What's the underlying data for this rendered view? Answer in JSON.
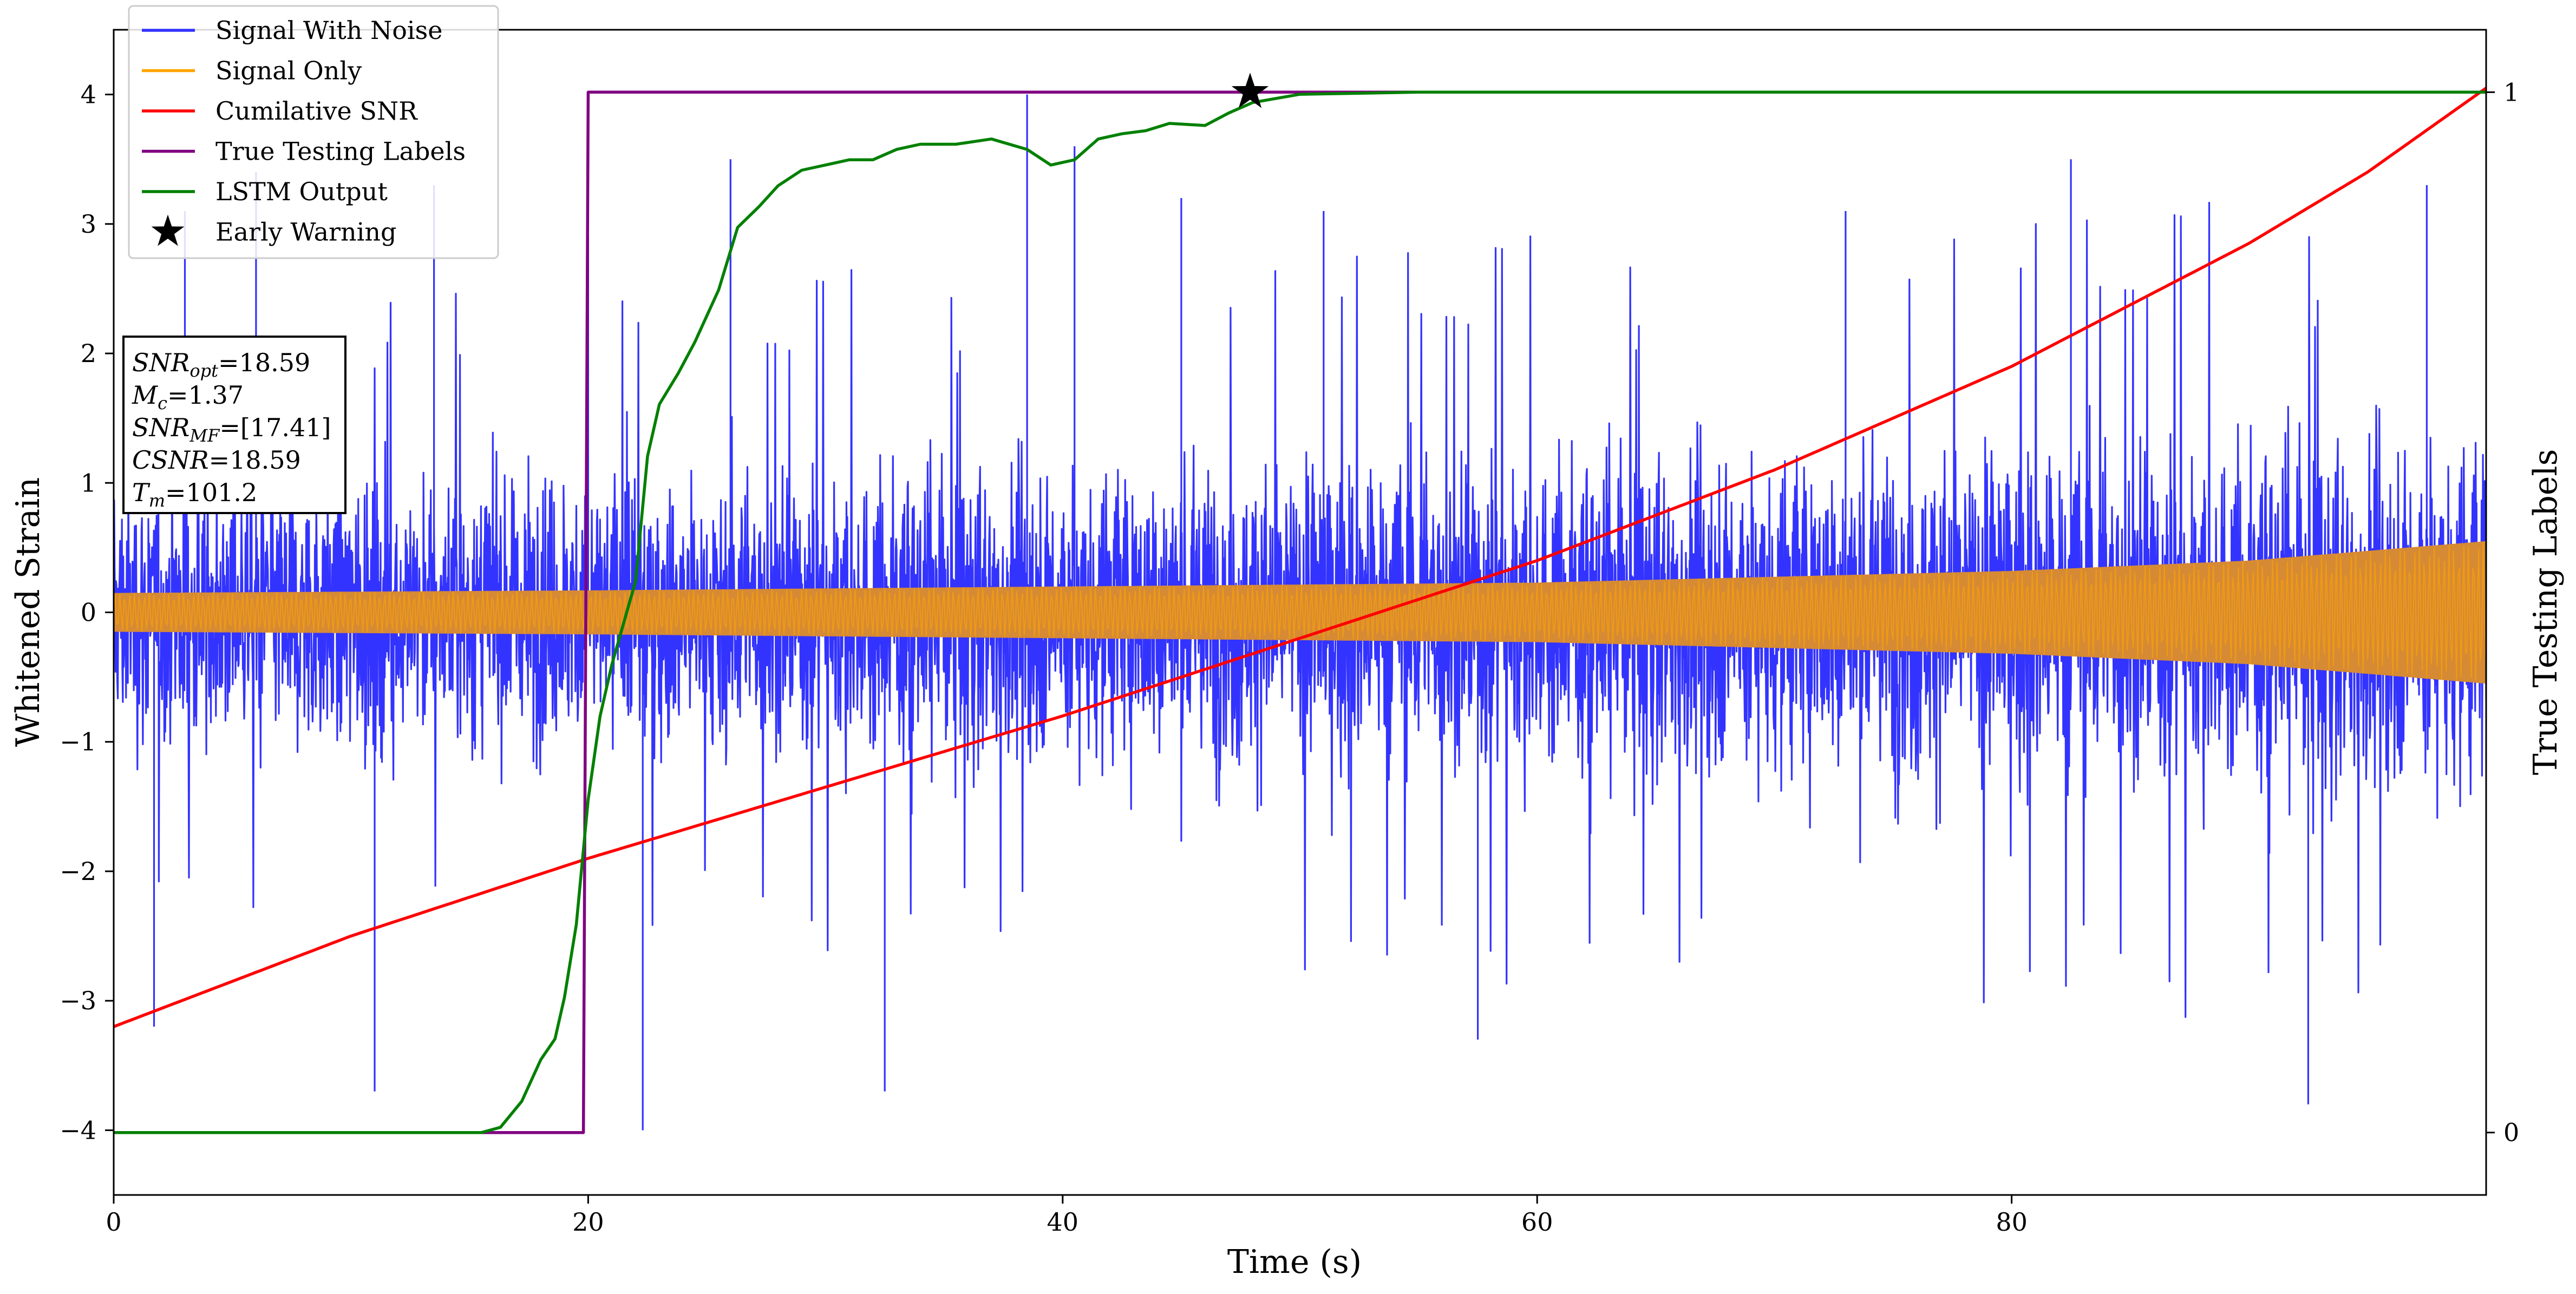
{
  "chart_data": {
    "type": "line",
    "xlabel": "Time (s)",
    "ylabel": "Whitened Strain",
    "y2label": "True Testing Labels",
    "xlim": [
      0,
      100
    ],
    "ylim": [
      -4.5,
      4.5
    ],
    "y2lim": [
      -0.06,
      1.06
    ],
    "x_ticks": [
      0,
      20,
      40,
      60,
      80
    ],
    "x_tick_labels": [
      "0",
      "20",
      "40",
      "60",
      "80"
    ],
    "y_ticks": [
      -4,
      -3,
      -2,
      -1,
      0,
      1,
      2,
      3,
      4
    ],
    "y_tick_labels": [
      "−4",
      "−3",
      "−2",
      "−1",
      "0",
      "1",
      "2",
      "3",
      "4"
    ],
    "y2_ticks": [
      0,
      1
    ],
    "y2_tick_labels": [
      "0",
      "1"
    ],
    "grid": false,
    "legend_position": "top-left",
    "series": [
      {
        "name": "Signal With Noise",
        "color": "#3333ff",
        "axis": "left",
        "kind": "noise",
        "typical_amplitude": [
          [
            0,
            1.3
          ],
          [
            100,
            1.8
          ]
        ],
        "peak_excursions": [
          [
            1.7,
            -3.2
          ],
          [
            3.0,
            3.1
          ],
          [
            6.0,
            3.4
          ],
          [
            11.0,
            -3.7
          ],
          [
            13.5,
            3.3
          ],
          [
            20.0,
            2.9
          ],
          [
            22.3,
            -4.0
          ],
          [
            26.0,
            3.5
          ],
          [
            32.5,
            -3.7
          ],
          [
            38.5,
            4.0
          ],
          [
            40.5,
            3.6
          ],
          [
            45.0,
            3.2
          ],
          [
            51.0,
            3.1
          ],
          [
            57.5,
            -3.3
          ],
          [
            73.0,
            3.1
          ],
          [
            82.5,
            3.5
          ],
          [
            92.5,
            -3.8
          ],
          [
            97.5,
            3.3
          ]
        ]
      },
      {
        "name": "Signal Only",
        "color": "#ffa500",
        "axis": "left",
        "kind": "chirp",
        "envelope": [
          [
            0,
            0.15
          ],
          [
            20,
            0.17
          ],
          [
            40,
            0.2
          ],
          [
            60,
            0.23
          ],
          [
            80,
            0.32
          ],
          [
            90,
            0.4
          ],
          [
            100,
            0.55
          ]
        ]
      },
      {
        "name": "Cumilative SNR",
        "color": "#ff0000",
        "axis": "left",
        "points": [
          [
            0,
            -3.2
          ],
          [
            10,
            -2.5
          ],
          [
            20,
            -1.9
          ],
          [
            30,
            -1.35
          ],
          [
            40,
            -0.8
          ],
          [
            50,
            -0.2
          ],
          [
            60,
            0.4
          ],
          [
            70,
            1.1
          ],
          [
            80,
            1.9
          ],
          [
            90,
            2.85
          ],
          [
            95,
            3.4
          ],
          [
            100,
            4.05
          ]
        ]
      },
      {
        "name": "True Testing Labels",
        "color": "#800080",
        "axis": "right",
        "points": [
          [
            0,
            0
          ],
          [
            19.8,
            0
          ],
          [
            20.0,
            1
          ],
          [
            100,
            1
          ]
        ]
      },
      {
        "name": "LSTM Output",
        "color": "#008000",
        "axis": "right",
        "points": [
          [
            0,
            0
          ],
          [
            15.5,
            0
          ],
          [
            16.3,
            0.005
          ],
          [
            17.2,
            0.03
          ],
          [
            18.0,
            0.07
          ],
          [
            18.6,
            0.09
          ],
          [
            19.0,
            0.13
          ],
          [
            19.5,
            0.2
          ],
          [
            20.0,
            0.32
          ],
          [
            20.5,
            0.4
          ],
          [
            21.0,
            0.45
          ],
          [
            22.0,
            0.53
          ],
          [
            22.5,
            0.65
          ],
          [
            23.0,
            0.7
          ],
          [
            23.8,
            0.73
          ],
          [
            24.5,
            0.76
          ],
          [
            25.5,
            0.81
          ],
          [
            26.3,
            0.87
          ],
          [
            27.2,
            0.89
          ],
          [
            28.0,
            0.91
          ],
          [
            29.0,
            0.925
          ],
          [
            30.0,
            0.93
          ],
          [
            31.0,
            0.935
          ],
          [
            32.0,
            0.935
          ],
          [
            33.0,
            0.945
          ],
          [
            34.0,
            0.95
          ],
          [
            35.5,
            0.95
          ],
          [
            37.0,
            0.955
          ],
          [
            38.5,
            0.945
          ],
          [
            39.5,
            0.93
          ],
          [
            40.5,
            0.935
          ],
          [
            41.5,
            0.955
          ],
          [
            42.5,
            0.96
          ],
          [
            43.5,
            0.963
          ],
          [
            44.5,
            0.97
          ],
          [
            46.0,
            0.968
          ],
          [
            47.0,
            0.98
          ],
          [
            48.0,
            0.99
          ],
          [
            50.0,
            0.998
          ],
          [
            55.0,
            1.0
          ],
          [
            100,
            1.0
          ]
        ]
      },
      {
        "name": "Early Warning",
        "color": "#000000",
        "axis": "right",
        "marker": "star",
        "points": [
          [
            47.9,
            1.0
          ]
        ]
      }
    ],
    "annotation_lines": [
      {
        "var": "SNR",
        "sub": "opt",
        "value": "=18.59"
      },
      {
        "var": "M",
        "sub": "c",
        "value": "=1.37"
      },
      {
        "var": "SNR",
        "sub": "MF",
        "value": "=[17.41]"
      },
      {
        "var": "CSNR",
        "sub": "",
        "value": "=18.59"
      },
      {
        "var": "T",
        "sub": "m",
        "value": "=101.2"
      }
    ]
  }
}
